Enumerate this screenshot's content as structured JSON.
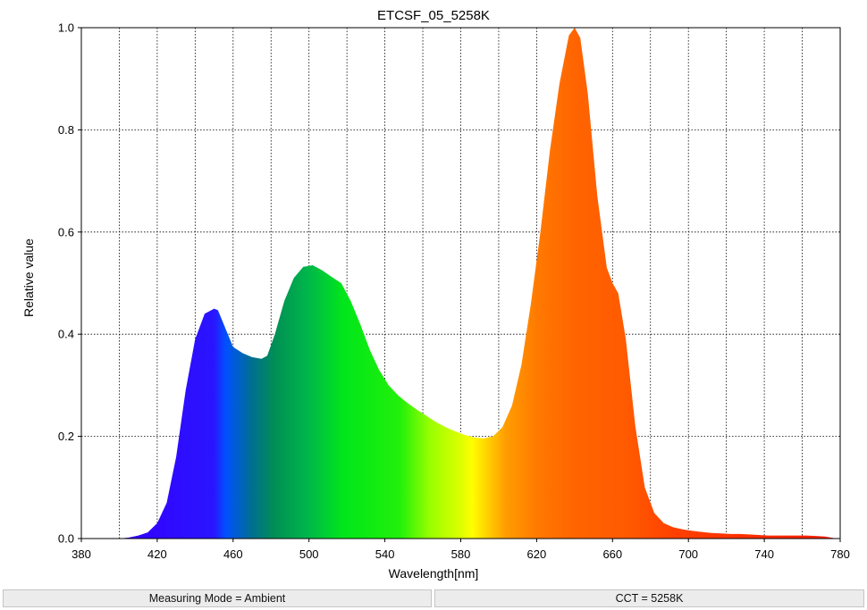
{
  "chart_data": {
    "type": "area",
    "title": "ETCSF_05_5258K",
    "xlabel": "Wavelength[nm]",
    "ylabel": "Relative value",
    "xlim": [
      380,
      780
    ],
    "ylim": [
      0,
      1.0
    ],
    "x_ticks": [
      "380",
      "420",
      "460",
      "500",
      "540",
      "580",
      "620",
      "660",
      "700",
      "740",
      "780"
    ],
    "y_ticks": [
      "0.0",
      "0.2",
      "0.4",
      "0.6",
      "0.8",
      "1.0"
    ],
    "grid": true,
    "fill": "visible-spectrum gradient",
    "series": [
      {
        "x": [
          380,
          400,
          405,
          410,
          415,
          420,
          425,
          430,
          435,
          440,
          445,
          450,
          452,
          455,
          460,
          465,
          470,
          475,
          478,
          482,
          487,
          492,
          497,
          502,
          507,
          512,
          517,
          522,
          527,
          532,
          537,
          542,
          547,
          552,
          557,
          562,
          567,
          572,
          577,
          582,
          587,
          592,
          597,
          602,
          607,
          612,
          617,
          622,
          627,
          632,
          637,
          640,
          643,
          647,
          652,
          657,
          660,
          663,
          667,
          672,
          677,
          682,
          687,
          692,
          697,
          702,
          707,
          712,
          717,
          722,
          727,
          732,
          737,
          742,
          747,
          752,
          757,
          762,
          767,
          772,
          778
        ],
        "y": [
          0,
          0.0,
          0.002,
          0.006,
          0.012,
          0.03,
          0.07,
          0.16,
          0.29,
          0.39,
          0.44,
          0.45,
          0.447,
          0.42,
          0.375,
          0.363,
          0.355,
          0.352,
          0.358,
          0.4,
          0.465,
          0.51,
          0.532,
          0.535,
          0.525,
          0.512,
          0.5,
          0.465,
          0.42,
          0.37,
          0.33,
          0.3,
          0.28,
          0.265,
          0.252,
          0.24,
          0.228,
          0.218,
          0.21,
          0.203,
          0.198,
          0.196,
          0.2,
          0.218,
          0.26,
          0.34,
          0.46,
          0.6,
          0.76,
          0.89,
          0.985,
          1.0,
          0.98,
          0.87,
          0.67,
          0.53,
          0.5,
          0.48,
          0.39,
          0.22,
          0.1,
          0.05,
          0.03,
          0.022,
          0.018,
          0.015,
          0.013,
          0.011,
          0.01,
          0.009,
          0.009,
          0.008,
          0.007,
          0.006,
          0.006,
          0.006,
          0.006,
          0.006,
          0.005,
          0.004,
          0.0
        ]
      }
    ]
  },
  "status": {
    "left": "Measuring Mode = Ambient",
    "right": "CCT = 5258K"
  }
}
